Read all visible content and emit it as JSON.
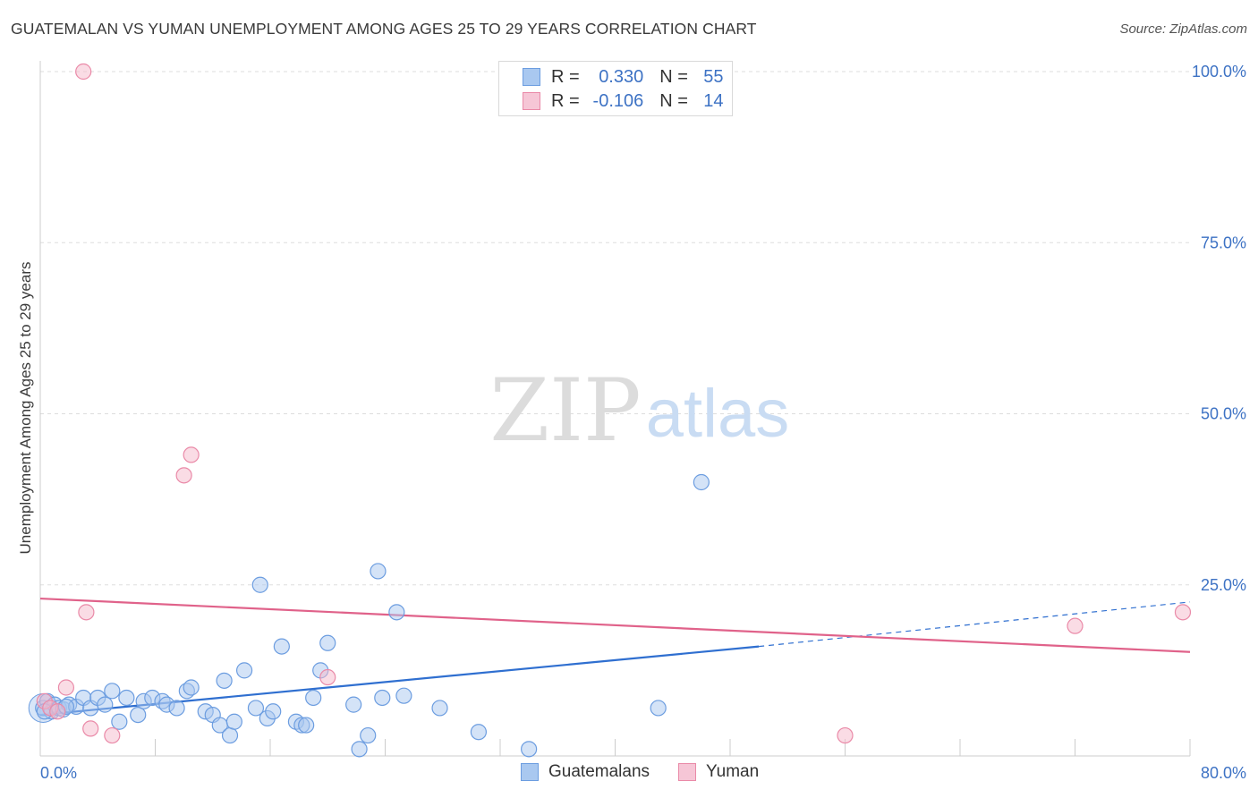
{
  "header": {
    "title": "GUATEMALAN VS YUMAN UNEMPLOYMENT AMONG AGES 25 TO 29 YEARS CORRELATION CHART",
    "source": "Source: ZipAtlas.com"
  },
  "legend": {
    "rows": [
      {
        "r_label": "R =",
        "r_value": "0.330",
        "n_label": "N =",
        "n_value": "55"
      },
      {
        "r_label": "R =",
        "r_value": "-0.106",
        "n_label": "N =",
        "n_value": "14"
      }
    ],
    "bottom": [
      "Guatemalans",
      "Yuman"
    ]
  },
  "watermark": {
    "zip": "ZIP",
    "atlas": "atlas"
  },
  "colors": {
    "blue_fill": "#a9c8f0",
    "blue_stroke": "#6c9de0",
    "blue_line": "#2f6fd0",
    "pink_fill": "#f6b9cc",
    "pink_stroke": "#ea8aa8",
    "pink_line": "#e0628a",
    "tick_text": "#3d72c4"
  },
  "chart_data": {
    "type": "scatter",
    "title": "GUATEMALAN VS YUMAN UNEMPLOYMENT AMONG AGES 25 TO 29 YEARS CORRELATION CHART",
    "xlabel": "",
    "ylabel": "Unemployment Among Ages 25 to 29 years",
    "xlim": [
      0,
      80
    ],
    "ylim": [
      0,
      100
    ],
    "x_tick_labels": [
      "0.0%",
      "80.0%"
    ],
    "y_tick_labels": [
      "25.0%",
      "50.0%",
      "75.0%",
      "100.0%"
    ],
    "y_ticks": [
      25,
      50,
      75,
      100
    ],
    "grid": true,
    "series": [
      {
        "name": "Guatemalans",
        "points": [
          [
            0.2,
            7.0
          ],
          [
            0.5,
            8.0
          ],
          [
            0.8,
            6.5
          ],
          [
            1.0,
            7.5
          ],
          [
            1.3,
            7.0
          ],
          [
            1.6,
            6.8
          ],
          [
            2.0,
            7.5
          ],
          [
            2.5,
            7.2
          ],
          [
            3.0,
            8.5
          ],
          [
            3.5,
            7.0
          ],
          [
            4.0,
            8.5
          ],
          [
            4.5,
            7.5
          ],
          [
            5.0,
            9.5
          ],
          [
            5.5,
            5.0
          ],
          [
            6.0,
            8.5
          ],
          [
            6.8,
            6.0
          ],
          [
            7.2,
            8.0
          ],
          [
            7.8,
            8.5
          ],
          [
            8.5,
            8.0
          ],
          [
            8.8,
            7.5
          ],
          [
            9.5,
            7.0
          ],
          [
            10.2,
            9.5
          ],
          [
            10.5,
            10.0
          ],
          [
            11.5,
            6.5
          ],
          [
            12.0,
            6.0
          ],
          [
            12.5,
            4.5
          ],
          [
            12.8,
            11.0
          ],
          [
            13.2,
            3.0
          ],
          [
            13.5,
            5.0
          ],
          [
            14.2,
            12.5
          ],
          [
            15.0,
            7.0
          ],
          [
            15.3,
            25.0
          ],
          [
            15.8,
            5.5
          ],
          [
            16.2,
            6.5
          ],
          [
            16.8,
            16.0
          ],
          [
            17.8,
            5.0
          ],
          [
            18.2,
            4.5
          ],
          [
            18.5,
            4.5
          ],
          [
            19.0,
            8.5
          ],
          [
            19.5,
            12.5
          ],
          [
            20.0,
            16.5
          ],
          [
            21.8,
            7.5
          ],
          [
            22.2,
            1.0
          ],
          [
            22.8,
            3.0
          ],
          [
            23.5,
            27.0
          ],
          [
            23.8,
            8.5
          ],
          [
            24.8,
            21.0
          ],
          [
            25.3,
            8.8
          ],
          [
            27.8,
            7.0
          ],
          [
            30.5,
            3.5
          ],
          [
            34.0,
            1.0
          ],
          [
            43.0,
            7.0
          ],
          [
            46.0,
            40.0
          ],
          [
            0.3,
            6.5
          ],
          [
            1.8,
            7.2
          ]
        ]
      },
      {
        "name": "Yuman",
        "points": [
          [
            0.3,
            8.0
          ],
          [
            0.7,
            7.0
          ],
          [
            1.2,
            6.5
          ],
          [
            1.8,
            10.0
          ],
          [
            3.0,
            100.0
          ],
          [
            3.2,
            21.0
          ],
          [
            3.5,
            4.0
          ],
          [
            5.0,
            3.0
          ],
          [
            10.0,
            41.0
          ],
          [
            10.5,
            44.0
          ],
          [
            20.0,
            11.5
          ],
          [
            56.0,
            3.0
          ],
          [
            72.0,
            19.0
          ],
          [
            79.5,
            21.0
          ]
        ]
      }
    ],
    "trendlines": [
      {
        "series": "Guatemalans",
        "x_start": 0,
        "y_start": 6.0,
        "x_end": 50,
        "y_end": 16.0,
        "dashed_extension_to_x": 80,
        "dashed_extension_y": 22.5
      },
      {
        "series": "Yuman",
        "x_start": 0,
        "y_start": 23.0,
        "x_end": 80,
        "y_end": 15.2
      }
    ]
  }
}
